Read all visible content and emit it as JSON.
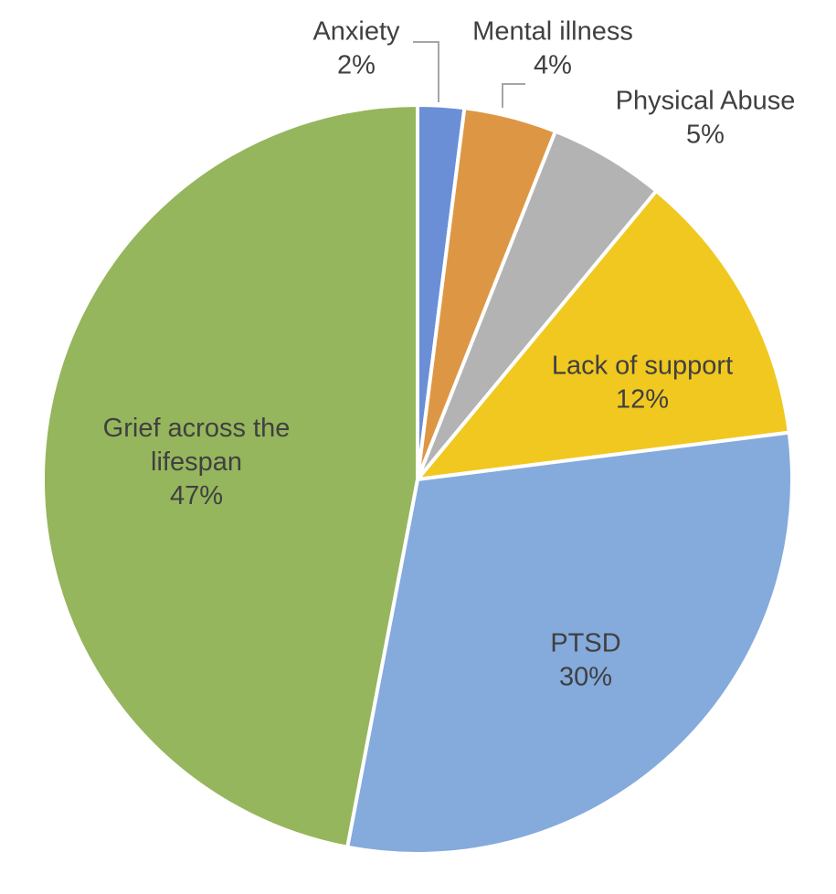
{
  "chart_data": {
    "type": "pie",
    "title": "",
    "slices": [
      {
        "label": "Anxiety",
        "value": 2,
        "value_label": "2%",
        "color": "#6a8fd6"
      },
      {
        "label": "Mental illness",
        "value": 4,
        "value_label": "4%",
        "color": "#dd9744"
      },
      {
        "label": "Physical Abuse",
        "value": 5,
        "value_label": "5%",
        "color": "#b3b3b3"
      },
      {
        "label": "Lack of support",
        "value": 12,
        "value_label": "12%",
        "color": "#f0c820"
      },
      {
        "label": "PTSD",
        "value": 30,
        "value_label": "30%",
        "color": "#85aadc"
      },
      {
        "label": "Grief across the lifespan",
        "value": 47,
        "value_label": "47%",
        "color": "#95b65c"
      }
    ]
  }
}
